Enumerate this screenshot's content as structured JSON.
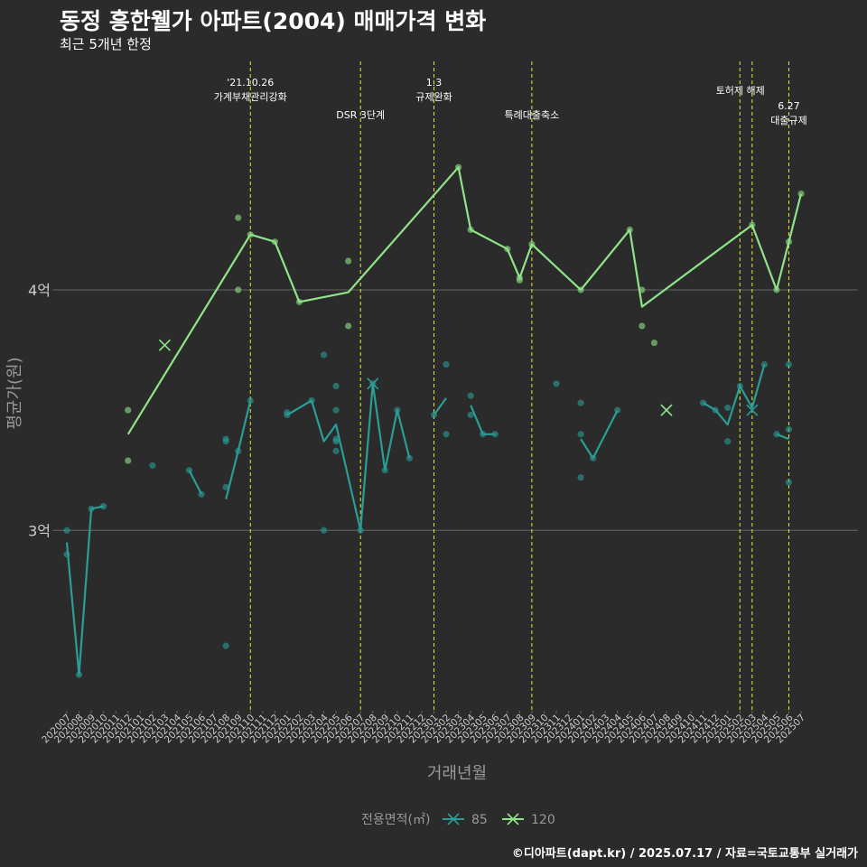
{
  "title": "동정 흥한웰가 아파트(2004) 매매가격 변화",
  "subtitle": "최근 5개년 한정",
  "caption": "©디아파트(dapt.kr) / 2025.07.17 / 자료=국토교통부 실거래가",
  "colors": {
    "background": "#2b2b2b",
    "series_85": "#2a9d96",
    "series_120": "#8fe388",
    "event_line": "#e8e83a",
    "grid": "#666666",
    "axis_text": "#cccccc",
    "label_text": "#999999"
  },
  "chart_data": {
    "type": "line",
    "xlabel": "거래년월",
    "ylabel": "평균가(원)",
    "ylim": [
      2.25,
      4.95
    ],
    "y_unit": "억",
    "y_ticks": [
      {
        "value": 3,
        "label": "3억"
      },
      {
        "value": 4,
        "label": "4억"
      }
    ],
    "grid": "horizontal",
    "legend": {
      "title": "전용면적(㎡)",
      "position": "bottom"
    },
    "x_categories": [
      "202007",
      "202008",
      "202009",
      "202010",
      "202011",
      "202012",
      "202101",
      "202102",
      "202103",
      "202104",
      "202105",
      "202106",
      "202107",
      "202108",
      "202109",
      "202110",
      "202111",
      "202112",
      "202201",
      "202202",
      "202203",
      "202204",
      "202205",
      "202206",
      "202207",
      "202208",
      "202209",
      "202210",
      "202211",
      "202212",
      "202301",
      "202302",
      "202303",
      "202304",
      "202305",
      "202306",
      "202307",
      "202308",
      "202309",
      "202310",
      "202311",
      "202312",
      "202401",
      "202402",
      "202403",
      "202404",
      "202405",
      "202406",
      "202407",
      "202408",
      "202409",
      "202410",
      "202411",
      "202412",
      "202501",
      "202502",
      "202503",
      "202504",
      "202505",
      "202506",
      "202507"
    ],
    "events": [
      {
        "x": 15,
        "lines": [
          "'21.10.26",
          "가계부채관리강화"
        ],
        "row": 0
      },
      {
        "x": 24,
        "lines": [
          "DSR 3단계"
        ],
        "row": 2
      },
      {
        "x": 30,
        "lines": [
          "1.3",
          "규제완화"
        ],
        "row": 0
      },
      {
        "x": 38,
        "lines": [
          "특례대출축소"
        ],
        "row": 2
      },
      {
        "x": 55,
        "lines": [
          "토허제 해제"
        ],
        "row": 1
      },
      {
        "x": 56,
        "lines": [],
        "row": 1
      },
      {
        "x": 59,
        "lines": [
          "6.27",
          "대출규제"
        ],
        "row": 3
      }
    ],
    "series": [
      {
        "name": "85",
        "line": [
          [
            [
              0,
              2.95
            ],
            [
              1,
              2.4
            ],
            [
              2,
              3.09
            ],
            [
              3,
              3.1
            ]
          ],
          [
            [
              10,
              3.25
            ],
            [
              11,
              3.15
            ]
          ],
          [
            [
              13,
              3.13
            ],
            [
              14,
              3.33
            ],
            [
              15,
              3.54
            ]
          ],
          [
            [
              18,
              3.48
            ],
            [
              20,
              3.54
            ],
            [
              21,
              3.37
            ],
            [
              22,
              3.44
            ],
            [
              24,
              3.0
            ],
            [
              25,
              3.61
            ],
            [
              26,
              3.25
            ],
            [
              27,
              3.5
            ],
            [
              28,
              3.3
            ]
          ],
          [
            [
              30,
              3.48
            ],
            [
              31,
              3.55
            ]
          ],
          [
            [
              33,
              3.52
            ],
            [
              34,
              3.4
            ],
            [
              35,
              3.4
            ]
          ],
          [
            [
              42,
              3.38
            ],
            [
              43,
              3.3
            ],
            [
              45,
              3.5
            ]
          ],
          [
            [
              52,
              3.53
            ],
            [
              53,
              3.5
            ],
            [
              54,
              3.44
            ],
            [
              55,
              3.6
            ],
            [
              56,
              3.51
            ],
            [
              57,
              3.69
            ]
          ],
          [
            [
              58,
              3.4
            ],
            [
              59,
              3.38
            ]
          ]
        ],
        "points": [
          [
            0,
            3.0
          ],
          [
            0,
            2.9
          ],
          [
            1,
            2.4
          ],
          [
            2,
            3.09
          ],
          [
            3,
            3.1
          ],
          [
            7,
            3.27
          ],
          [
            10,
            3.25
          ],
          [
            11,
            3.15
          ],
          [
            13,
            2.52
          ],
          [
            13,
            3.18
          ],
          [
            13,
            3.38
          ],
          [
            13,
            3.37
          ],
          [
            14,
            3.33
          ],
          [
            15,
            3.54
          ],
          [
            18,
            3.49
          ],
          [
            18,
            3.48
          ],
          [
            20,
            3.54
          ],
          [
            21,
            3.73
          ],
          [
            21,
            3.0
          ],
          [
            22,
            3.6
          ],
          [
            22,
            3.5
          ],
          [
            22,
            3.38
          ],
          [
            22,
            3.37
          ],
          [
            22,
            3.33
          ],
          [
            24,
            3.0
          ],
          [
            25,
            3.61
          ],
          [
            26,
            3.25
          ],
          [
            27,
            3.5
          ],
          [
            28,
            3.3
          ],
          [
            30,
            3.48
          ],
          [
            31,
            3.69
          ],
          [
            31,
            3.4
          ],
          [
            33,
            3.56
          ],
          [
            33,
            3.48
          ],
          [
            34,
            3.4
          ],
          [
            35,
            3.4
          ],
          [
            40,
            3.61
          ],
          [
            42,
            3.53
          ],
          [
            42,
            3.4
          ],
          [
            42,
            3.22
          ],
          [
            43,
            3.3
          ],
          [
            45,
            3.5
          ],
          [
            52,
            3.53
          ],
          [
            53,
            3.5
          ],
          [
            54,
            3.51
          ],
          [
            54,
            3.37
          ],
          [
            55,
            3.6
          ],
          [
            57,
            3.69
          ],
          [
            58,
            3.4
          ],
          [
            59,
            3.69
          ],
          [
            59,
            3.42
          ],
          [
            59,
            3.2
          ]
        ],
        "single": [
          [
            25,
            3.61
          ],
          [
            49,
            3.5
          ],
          [
            56,
            3.5
          ]
        ]
      },
      {
        "name": "120",
        "line": [
          [
            [
              5,
              3.4
            ],
            [
              15,
              4.23
            ],
            [
              17,
              4.2
            ],
            [
              19,
              3.95
            ],
            [
              23,
              3.99
            ],
            [
              32,
              4.51
            ],
            [
              33,
              4.25
            ],
            [
              36,
              4.17
            ],
            [
              37,
              4.05
            ],
            [
              38,
              4.19
            ],
            [
              42,
              4.0
            ],
            [
              46,
              4.25
            ],
            [
              47,
              3.93
            ],
            [
              56,
              4.27
            ],
            [
              58,
              4.0
            ],
            [
              59,
              4.2
            ],
            [
              60,
              4.4
            ]
          ]
        ],
        "points": [
          [
            5,
            3.5
          ],
          [
            5,
            3.29
          ],
          [
            14,
            4.3
          ],
          [
            14,
            4.0
          ],
          [
            15,
            4.23
          ],
          [
            17,
            4.2
          ],
          [
            19,
            3.95
          ],
          [
            23,
            4.12
          ],
          [
            23,
            3.85
          ],
          [
            32,
            4.51
          ],
          [
            33,
            4.25
          ],
          [
            36,
            4.17
          ],
          [
            37,
            4.05
          ],
          [
            37,
            4.04
          ],
          [
            38,
            4.19
          ],
          [
            42,
            4.0
          ],
          [
            46,
            4.25
          ],
          [
            47,
            4.0
          ],
          [
            47,
            3.85
          ],
          [
            48,
            3.78
          ],
          [
            56,
            4.27
          ],
          [
            58,
            4.0
          ],
          [
            59,
            4.2
          ],
          [
            60,
            4.4
          ]
        ],
        "single": [
          [
            8,
            3.77
          ],
          [
            49,
            3.5
          ]
        ]
      }
    ]
  }
}
